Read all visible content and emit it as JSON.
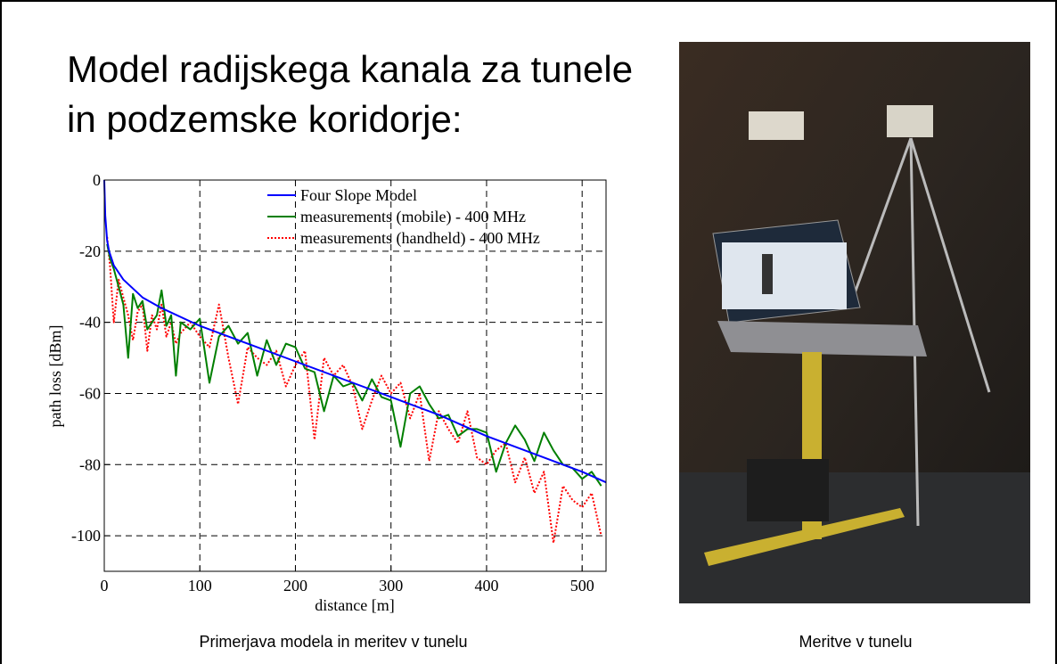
{
  "title": [
    "Model radijskega kanala za tunele",
    "in podzemske koridorje:"
  ],
  "captions": {
    "chart": "Primerjava modela in meritev  v tunelu",
    "photo": "Meritve v tunelu"
  },
  "chart_data": {
    "type": "line",
    "xlabel": "distance [m]",
    "ylabel": "path loss [dBm]",
    "xlim": [
      0,
      525
    ],
    "ylim": [
      -110,
      0
    ],
    "xticks": [
      0,
      100,
      200,
      300,
      400,
      500
    ],
    "yticks": [
      0,
      -20,
      -40,
      -60,
      -80,
      -100
    ],
    "grid": true,
    "legend": "top-right",
    "series": [
      {
        "name": "Four Slope Model",
        "color": "#0000ff",
        "style": "solid",
        "x": [
          0,
          1,
          3,
          5,
          10,
          20,
          40,
          60,
          100,
          150,
          200,
          250,
          300,
          350,
          400,
          450,
          500,
          525
        ],
        "values": [
          0,
          -10,
          -17,
          -20,
          -24,
          -28,
          -33,
          -36,
          -41,
          -46,
          -51,
          -56,
          -61,
          -66,
          -72,
          -77,
          -82,
          -85
        ]
      },
      {
        "name": "measurements (mobile) - 400 MHz",
        "color": "#007f00",
        "style": "solid",
        "x": [
          3,
          6,
          10,
          15,
          20,
          25,
          30,
          35,
          40,
          45,
          50,
          55,
          60,
          65,
          70,
          75,
          80,
          90,
          100,
          110,
          120,
          130,
          140,
          150,
          160,
          170,
          180,
          190,
          200,
          210,
          220,
          230,
          240,
          250,
          260,
          270,
          280,
          290,
          300,
          310,
          320,
          330,
          340,
          350,
          360,
          370,
          380,
          390,
          400,
          410,
          420,
          430,
          440,
          450,
          460,
          470,
          480,
          490,
          500,
          510,
          520
        ],
        "values": [
          -18,
          -22,
          -25,
          -30,
          -35,
          -50,
          -32,
          -36,
          -34,
          -42,
          -40,
          -38,
          -31,
          -41,
          -38,
          -55,
          -40,
          -42,
          -39,
          -57,
          -44,
          -41,
          -46,
          -43,
          -55,
          -45,
          -52,
          -46,
          -47,
          -53,
          -54,
          -65,
          -55,
          -58,
          -57,
          -62,
          -56,
          -61,
          -62,
          -75,
          -60,
          -58,
          -63,
          -67,
          -66,
          -72,
          -70,
          -70,
          -71,
          -82,
          -74,
          -69,
          -73,
          -79,
          -71,
          -76,
          -80,
          -81,
          -84,
          -82,
          -86
        ]
      },
      {
        "name": "measurements (handheld) - 400 MHz",
        "color": "#ff0000",
        "style": "dotted",
        "x": [
          3,
          6,
          10,
          15,
          20,
          25,
          30,
          35,
          40,
          45,
          50,
          55,
          60,
          65,
          70,
          75,
          80,
          90,
          100,
          110,
          120,
          130,
          140,
          150,
          160,
          170,
          180,
          190,
          200,
          210,
          220,
          230,
          240,
          250,
          260,
          270,
          280,
          290,
          300,
          310,
          320,
          330,
          340,
          350,
          360,
          370,
          380,
          390,
          400,
          410,
          420,
          430,
          440,
          450,
          460,
          470,
          480,
          490,
          500,
          510,
          520
        ],
        "values": [
          -16,
          -24,
          -40,
          -28,
          -33,
          -38,
          -45,
          -37,
          -35,
          -48,
          -38,
          -42,
          -35,
          -44,
          -40,
          -46,
          -43,
          -40,
          -44,
          -47,
          -35,
          -50,
          -63,
          -47,
          -50,
          -52,
          -48,
          -58,
          -52,
          -48,
          -73,
          -50,
          -55,
          -52,
          -58,
          -70,
          -62,
          -55,
          -60,
          -57,
          -67,
          -60,
          -79,
          -65,
          -70,
          -74,
          -65,
          -78,
          -80,
          -76,
          -74,
          -85,
          -78,
          -88,
          -82,
          -102,
          -86,
          -90,
          -92,
          -88,
          -100
        ]
      }
    ]
  }
}
